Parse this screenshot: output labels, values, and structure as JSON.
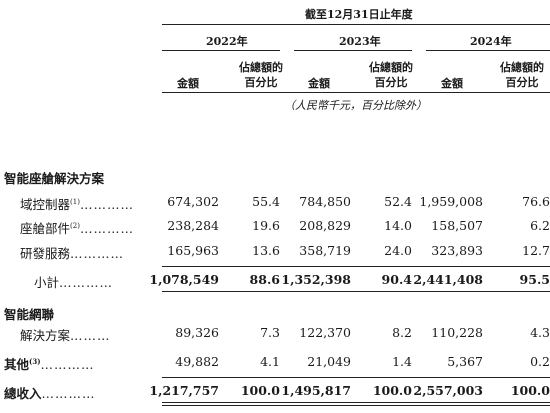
{
  "header": {
    "period_title": "截至12月31日止年度",
    "years": [
      "2022年",
      "2023年",
      "2024年"
    ],
    "col_amount": "金額",
    "col_pct_line1": "佔總額的",
    "col_pct_line2": "百分比",
    "unit_note": "（人民幣千元，百分比除外）"
  },
  "sections": {
    "smart_cockpit": "智能座艙解決方案",
    "smart_connect_line1": "智能網聯",
    "smart_connect_line2": "解決方案"
  },
  "rows": [
    {
      "label": "域控制器",
      "note": "(1)",
      "dots": "…………",
      "v": [
        "674,302",
        "55.4",
        "784,850",
        "52.4",
        "1,959,008",
        "76.6"
      ]
    },
    {
      "label": "座艙部件",
      "note": "(2)",
      "dots": "…………",
      "v": [
        "238,284",
        "19.6",
        "208,829",
        "14.0",
        "158,507",
        "6.2"
      ]
    },
    {
      "label": "研發服務",
      "note": "",
      "dots": "…………",
      "v": [
        "165,963",
        "13.6",
        "358,719",
        "24.0",
        "323,893",
        "12.7"
      ]
    },
    {
      "label": "小計",
      "note": "",
      "dots": "…………",
      "v": [
        "1,078,549",
        "88.6",
        "1,352,398",
        "90.4",
        "2,441,408",
        "95.5"
      ]
    },
    {
      "label": "解決方案",
      "note": "",
      "dots": "………",
      "v": [
        "89,326",
        "7.3",
        "122,370",
        "8.2",
        "110,228",
        "4.3"
      ]
    },
    {
      "label": "其他",
      "note": "(3)",
      "dots": "…………",
      "v": [
        "49,882",
        "4.1",
        "21,049",
        "1.4",
        "5,367",
        "0.2"
      ]
    },
    {
      "label": "總收入",
      "note": "",
      "dots": "…………",
      "v": [
        "1,217,757",
        "100.0",
        "1,495,817",
        "100.0",
        "2,557,003",
        "100.0"
      ]
    }
  ]
}
